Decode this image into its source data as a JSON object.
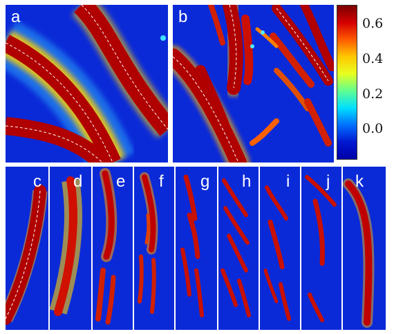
{
  "panels": [
    {
      "id": "a",
      "label": "a"
    },
    {
      "id": "b",
      "label": "b"
    },
    {
      "id": "c",
      "label": "c"
    },
    {
      "id": "d",
      "label": "d"
    },
    {
      "id": "e",
      "label": "e"
    },
    {
      "id": "f",
      "label": "f"
    },
    {
      "id": "g",
      "label": "g"
    },
    {
      "id": "h",
      "label": "h"
    },
    {
      "id": "i",
      "label": "i"
    },
    {
      "id": "j",
      "label": "j"
    },
    {
      "id": "k",
      "label": "k"
    }
  ],
  "colorbar": {
    "ticks": [
      "0.6",
      "0.4",
      "0.2",
      "0.0"
    ],
    "range": [
      -0.1,
      0.65
    ],
    "colors": [
      "#7a0000",
      "#d40000",
      "#ff5a00",
      "#ffc800",
      "#e8ff20",
      "#60ff90",
      "#00e0ff",
      "#0070ff",
      "#0018d0",
      "#0000a8"
    ]
  }
}
